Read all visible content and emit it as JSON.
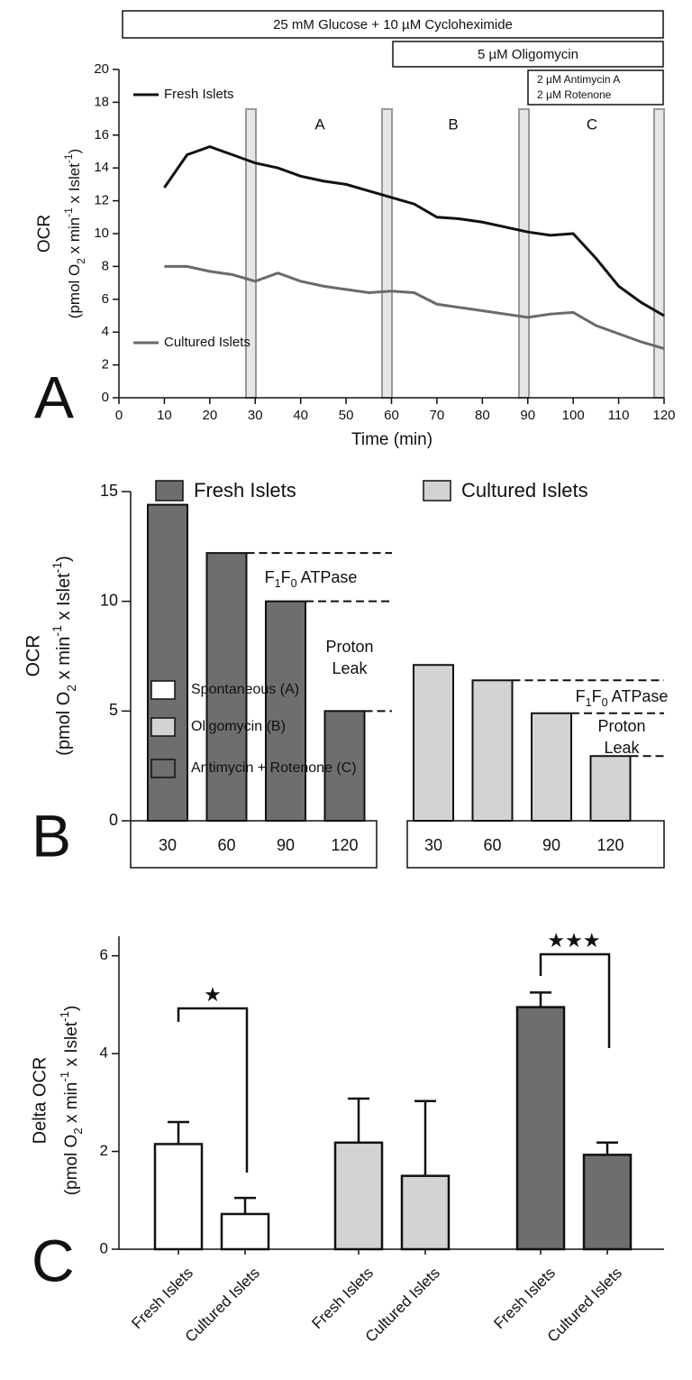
{
  "chart_data": [
    {
      "type": "line",
      "panel_label": "A",
      "treatments": [
        "25 mM Glucose + 10 µM Cycloheximide",
        "5 µM Oligomycin",
        [
          "2 µM Antimycin A",
          "2 µM Rotenone"
        ]
      ],
      "regions": [
        "A",
        "B",
        "C"
      ],
      "ylabel": "OCR",
      "ylabel_unit": [
        {
          "text": "(pmol O"
        },
        {
          "sub": "2"
        },
        {
          "text": " x min"
        },
        {
          "sup": "-1"
        },
        {
          "text": " x Islet"
        },
        {
          "sup": "-1"
        },
        {
          "text": ")"
        }
      ],
      "xlabel": "Time (min)",
      "x": [
        10,
        15,
        20,
        25,
        30,
        35,
        40,
        45,
        50,
        55,
        60,
        65,
        70,
        75,
        80,
        85,
        90,
        95,
        100,
        105,
        110,
        115,
        120
      ],
      "series": [
        {
          "name": "Fresh Islets",
          "color": "#111111",
          "values": [
            12.8,
            14.8,
            15.3,
            14.8,
            14.3,
            14.0,
            13.5,
            13.2,
            13.0,
            12.6,
            12.2,
            11.8,
            11.0,
            10.9,
            10.7,
            10.4,
            10.1,
            9.9,
            10.0,
            8.5,
            6.8,
            5.8,
            5.0
          ]
        },
        {
          "name": "Cultured Islets",
          "color": "#6a6a6a",
          "values": [
            8.0,
            8.0,
            7.7,
            7.5,
            7.1,
            7.6,
            7.1,
            6.8,
            6.6,
            6.4,
            6.5,
            6.4,
            5.7,
            5.5,
            5.3,
            5.1,
            4.9,
            5.1,
            5.2,
            4.4,
            3.9,
            3.4,
            3.0
          ]
        }
      ],
      "xlim": [
        0,
        120
      ],
      "xticks": [
        0,
        10,
        20,
        30,
        40,
        50,
        60,
        70,
        80,
        90,
        100,
        110,
        120
      ],
      "ylim": [
        0,
        20
      ],
      "yticks": [
        0,
        2,
        4,
        6,
        8,
        10,
        12,
        14,
        16,
        18,
        20
      ]
    },
    {
      "type": "bar",
      "panel_label": "B",
      "ylabel": "OCR",
      "ylabel_unit": [
        {
          "text": "(pmol O"
        },
        {
          "sub": "2"
        },
        {
          "text": " x min"
        },
        {
          "sup": "-1"
        },
        {
          "text": " x Islet"
        },
        {
          "sup": "-1"
        },
        {
          "text": ")"
        }
      ],
      "categories": [
        "30",
        "60",
        "90",
        "120"
      ],
      "series": [
        {
          "name": "Fresh Islets",
          "color": "#6e6e6e",
          "values": [
            14.4,
            12.2,
            10.0,
            5.0
          ]
        },
        {
          "name": "Cultured Islets",
          "color": "#d3d3d3",
          "values": [
            7.1,
            6.4,
            4.9,
            2.95
          ]
        }
      ],
      "annotations": [
        [
          {
            "text": "F"
          },
          {
            "sub": "1"
          },
          {
            "text": "F"
          },
          {
            "sub": "0"
          },
          {
            "text": " ATPase"
          }
        ],
        [
          "Proton",
          "Leak"
        ]
      ],
      "ylim": [
        0,
        15
      ],
      "yticks": [
        0,
        5,
        10,
        15
      ]
    },
    {
      "type": "errorbar",
      "panel_label": "C",
      "ylabel": "Delta OCR",
      "ylabel_unit": [
        {
          "text": "(pmol O"
        },
        {
          "sub": "2"
        },
        {
          "text": " x min"
        },
        {
          "sup": "-1"
        },
        {
          "text": " x Islet"
        },
        {
          "sup": "-1"
        },
        {
          "text": ")"
        }
      ],
      "categories": [
        "Fresh Islets",
        "Cultured Islets"
      ],
      "series": [
        {
          "name": "Spontaneous (A)",
          "color": "#ffffff",
          "values": [
            2.15,
            0.72
          ],
          "errors": [
            0.45,
            0.33
          ]
        },
        {
          "name": "Oligomycin (B)",
          "color": "#d3d3d3",
          "values": [
            2.18,
            1.5
          ],
          "errors": [
            0.9,
            1.53
          ]
        },
        {
          "name": "Antimycin + Rotenone (C)",
          "color": "#6e6e6e",
          "values": [
            4.95,
            1.93
          ],
          "errors": [
            0.3,
            0.25
          ]
        }
      ],
      "significance": [
        "★",
        "★★★"
      ],
      "ylim": [
        0,
        6.4
      ],
      "yticks": [
        0,
        2,
        4,
        6
      ]
    }
  ]
}
